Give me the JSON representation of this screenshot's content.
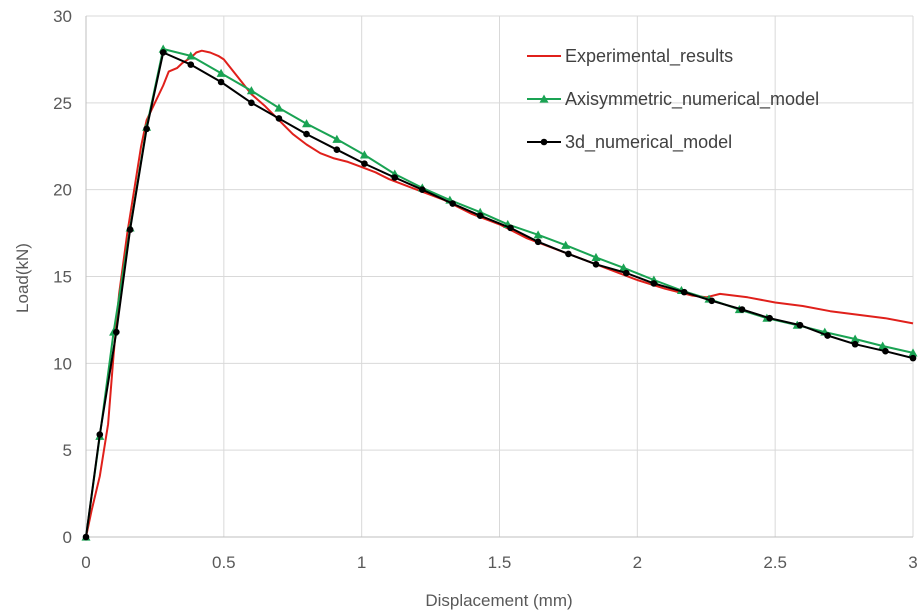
{
  "chart_data": {
    "type": "line",
    "title": "",
    "xlabel": "Displacement (mm)",
    "ylabel": "Load(kN)",
    "xlim": [
      0,
      3
    ],
    "ylim": [
      0,
      30
    ],
    "xticks": [
      0,
      0.5,
      1,
      1.5,
      2,
      2.5,
      3
    ],
    "yticks": [
      0,
      5,
      10,
      15,
      20,
      25,
      30
    ],
    "xtick_labels": [
      "0",
      "0.5",
      "1",
      "1.5",
      "2",
      "2.5",
      "3"
    ],
    "ytick_labels": [
      "0",
      "5",
      "10",
      "15",
      "20",
      "25",
      "30"
    ],
    "grid": true,
    "legend_position": "top-right",
    "series": [
      {
        "name": "Experimental_results",
        "color": "#e0201b",
        "marker": "none",
        "x": [
          0,
          0.02,
          0.05,
          0.08,
          0.1,
          0.12,
          0.15,
          0.18,
          0.2,
          0.22,
          0.25,
          0.28,
          0.3,
          0.33,
          0.35,
          0.38,
          0.4,
          0.42,
          0.45,
          0.48,
          0.5,
          0.55,
          0.6,
          0.65,
          0.7,
          0.75,
          0.8,
          0.85,
          0.9,
          0.95,
          1.0,
          1.05,
          1.1,
          1.2,
          1.3,
          1.4,
          1.5,
          1.6,
          1.7,
          1.8,
          1.9,
          2.0,
          2.1,
          2.2,
          2.25,
          2.3,
          2.4,
          2.5,
          2.6,
          2.7,
          2.8,
          2.9,
          3.0
        ],
        "y": [
          0,
          1.5,
          3.5,
          6.5,
          10.5,
          14.0,
          17.5,
          20.5,
          22.5,
          24.0,
          25.0,
          26.0,
          26.8,
          27.0,
          27.3,
          27.6,
          27.9,
          28.0,
          27.9,
          27.7,
          27.5,
          26.5,
          25.5,
          24.8,
          24.0,
          23.2,
          22.6,
          22.1,
          21.8,
          21.6,
          21.3,
          21.0,
          20.6,
          20.0,
          19.4,
          18.6,
          18.0,
          17.2,
          16.6,
          16.0,
          15.4,
          14.8,
          14.3,
          13.9,
          13.8,
          14.0,
          13.8,
          13.5,
          13.3,
          13.0,
          12.8,
          12.6,
          12.3
        ]
      },
      {
        "name": "Axisymmetric_numerical_model",
        "color": "#1aa353",
        "marker": "triangle",
        "x": [
          0,
          0.05,
          0.1,
          0.16,
          0.22,
          0.28,
          0.38,
          0.49,
          0.6,
          0.7,
          0.8,
          0.91,
          1.01,
          1.12,
          1.22,
          1.32,
          1.43,
          1.53,
          1.64,
          1.74,
          1.85,
          1.95,
          2.06,
          2.16,
          2.26,
          2.37,
          2.47,
          2.58,
          2.68,
          2.79,
          2.89,
          3.0
        ],
        "y": [
          0,
          5.8,
          11.8,
          17.8,
          23.6,
          28.1,
          27.7,
          26.7,
          25.7,
          24.7,
          23.8,
          22.9,
          22.0,
          20.9,
          20.1,
          19.4,
          18.7,
          18.0,
          17.4,
          16.8,
          16.1,
          15.5,
          14.8,
          14.2,
          13.7,
          13.1,
          12.6,
          12.2,
          11.8,
          11.4,
          11.0,
          10.6
        ]
      },
      {
        "name": "3d_numerical_model",
        "color": "#000000",
        "marker": "circle",
        "x": [
          0,
          0.05,
          0.11,
          0.16,
          0.22,
          0.28,
          0.38,
          0.49,
          0.6,
          0.7,
          0.8,
          0.91,
          1.01,
          1.12,
          1.22,
          1.33,
          1.43,
          1.54,
          1.64,
          1.75,
          1.85,
          1.96,
          2.06,
          2.17,
          2.27,
          2.38,
          2.48,
          2.59,
          2.69,
          2.79,
          2.9,
          3.0
        ],
        "y": [
          0,
          5.9,
          11.8,
          17.7,
          23.5,
          27.9,
          27.2,
          26.2,
          25.0,
          24.1,
          23.2,
          22.3,
          21.5,
          20.7,
          20.0,
          19.2,
          18.5,
          17.8,
          17.0,
          16.3,
          15.7,
          15.2,
          14.6,
          14.1,
          13.6,
          13.1,
          12.6,
          12.2,
          11.6,
          11.1,
          10.7,
          10.3
        ]
      }
    ]
  }
}
